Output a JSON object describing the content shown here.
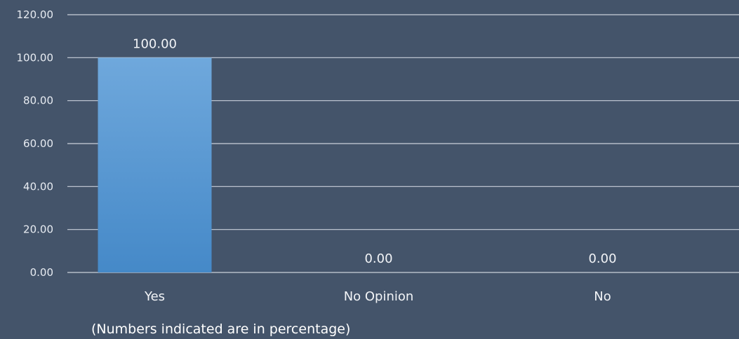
{
  "chart_data": {
    "type": "bar",
    "categories": [
      "Yes",
      "No Opinion",
      "No"
    ],
    "values": [
      100.0,
      0.0,
      0.0
    ],
    "data_labels": [
      "100.00",
      "0.00",
      "0.00"
    ],
    "ylim": [
      0,
      120
    ],
    "yticks": [
      "0.00",
      "20.00",
      "40.00",
      "60.00",
      "80.00",
      "100.00",
      "120.00"
    ],
    "grid": true,
    "legend": "none",
    "note": "(Numbers indicated are in percentage)",
    "colors": {
      "background": "#44546a",
      "bar_top": "#6fa8dc",
      "bar_bottom": "#4589c8",
      "grid": "#c9d0da"
    }
  }
}
